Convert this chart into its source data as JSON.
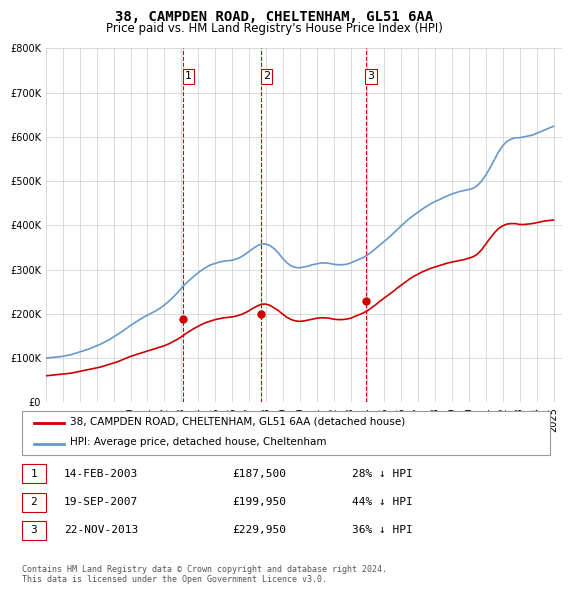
{
  "title": "38, CAMPDEN ROAD, CHELTENHAM, GL51 6AA",
  "subtitle": "Price paid vs. HM Land Registry's House Price Index (HPI)",
  "footnote": "Contains HM Land Registry data © Crown copyright and database right 2024.\nThis data is licensed under the Open Government Licence v3.0.",
  "legend_label_red": "38, CAMPDEN ROAD, CHELTENHAM, GL51 6AA (detached house)",
  "legend_label_blue": "HPI: Average price, detached house, Cheltenham",
  "transactions": [
    {
      "num": 1,
      "date": "14-FEB-2003",
      "price": "£187,500",
      "hpi_diff": "28% ↓ HPI",
      "year": 2003.12
    },
    {
      "num": 2,
      "date": "19-SEP-2007",
      "price": "£199,950",
      "hpi_diff": "44% ↓ HPI",
      "year": 2007.72
    },
    {
      "num": 3,
      "date": "22-NOV-2013",
      "price": "£229,950",
      "hpi_diff": "36% ↓ HPI",
      "year": 2013.9
    }
  ],
  "red_color": "#cc0000",
  "blue_color": "#6699cc",
  "dashed_line_color": "#cc0000",
  "marker_color": "#cc0000",
  "background_color": "#ffffff",
  "grid_color": "#cccccc",
  "ylim": [
    0,
    800000
  ],
  "xlim_start": 1995.0,
  "xlim_end": 2025.5,
  "hpi_x": [
    1995.0,
    1995.25,
    1995.5,
    1995.75,
    1996.0,
    1996.25,
    1996.5,
    1996.75,
    1997.0,
    1997.25,
    1997.5,
    1997.75,
    1998.0,
    1998.25,
    1998.5,
    1998.75,
    1999.0,
    1999.25,
    1999.5,
    1999.75,
    2000.0,
    2000.25,
    2000.5,
    2000.75,
    2001.0,
    2001.25,
    2001.5,
    2001.75,
    2002.0,
    2002.25,
    2002.5,
    2002.75,
    2003.0,
    2003.25,
    2003.5,
    2003.75,
    2004.0,
    2004.25,
    2004.5,
    2004.75,
    2005.0,
    2005.25,
    2005.5,
    2005.75,
    2006.0,
    2006.25,
    2006.5,
    2006.75,
    2007.0,
    2007.25,
    2007.5,
    2007.75,
    2008.0,
    2008.25,
    2008.5,
    2008.75,
    2009.0,
    2009.25,
    2009.5,
    2009.75,
    2010.0,
    2010.25,
    2010.5,
    2010.75,
    2011.0,
    2011.25,
    2011.5,
    2011.75,
    2012.0,
    2012.25,
    2012.5,
    2012.75,
    2013.0,
    2013.25,
    2013.5,
    2013.75,
    2014.0,
    2014.25,
    2014.5,
    2014.75,
    2015.0,
    2015.25,
    2015.5,
    2015.75,
    2016.0,
    2016.25,
    2016.5,
    2016.75,
    2017.0,
    2017.25,
    2017.5,
    2017.75,
    2018.0,
    2018.25,
    2018.5,
    2018.75,
    2019.0,
    2019.25,
    2019.5,
    2019.75,
    2020.0,
    2020.25,
    2020.5,
    2020.75,
    2021.0,
    2021.25,
    2021.5,
    2021.75,
    2022.0,
    2022.25,
    2022.5,
    2022.75,
    2023.0,
    2023.25,
    2023.5,
    2023.75,
    2024.0,
    2024.25,
    2024.5,
    2024.75,
    2025.0
  ],
  "hpi_y": [
    100000,
    101000,
    102000,
    103000,
    104000,
    106000,
    108000,
    111000,
    114000,
    117000,
    120000,
    124000,
    128000,
    132000,
    137000,
    142000,
    148000,
    154000,
    160000,
    167000,
    174000,
    180000,
    186000,
    192000,
    197000,
    202000,
    207000,
    213000,
    220000,
    228000,
    237000,
    247000,
    258000,
    268000,
    277000,
    285000,
    293000,
    300000,
    306000,
    311000,
    314000,
    317000,
    319000,
    320000,
    321000,
    324000,
    328000,
    334000,
    341000,
    348000,
    354000,
    358000,
    358000,
    354000,
    347000,
    337000,
    325000,
    315000,
    308000,
    305000,
    304000,
    306000,
    308000,
    311000,
    313000,
    315000,
    315000,
    314000,
    312000,
    311000,
    311000,
    312000,
    315000,
    319000,
    323000,
    327000,
    333000,
    340000,
    348000,
    356000,
    364000,
    372000,
    381000,
    390000,
    399000,
    408000,
    416000,
    423000,
    430000,
    437000,
    443000,
    449000,
    454000,
    458000,
    463000,
    467000,
    471000,
    474000,
    477000,
    479000,
    481000,
    484000,
    490000,
    500000,
    514000,
    530000,
    548000,
    566000,
    580000,
    590000,
    595000,
    598000,
    598000,
    600000,
    602000,
    604000,
    608000,
    612000,
    616000,
    620000,
    624000
  ],
  "red_x": [
    1995.0,
    1995.25,
    1995.5,
    1995.75,
    1996.0,
    1996.25,
    1996.5,
    1996.75,
    1997.0,
    1997.25,
    1997.5,
    1997.75,
    1998.0,
    1998.25,
    1998.5,
    1998.75,
    1999.0,
    1999.25,
    1999.5,
    1999.75,
    2000.0,
    2000.25,
    2000.5,
    2000.75,
    2001.0,
    2001.25,
    2001.5,
    2001.75,
    2002.0,
    2002.25,
    2002.5,
    2002.75,
    2003.0,
    2003.25,
    2003.5,
    2003.75,
    2004.0,
    2004.25,
    2004.5,
    2004.75,
    2005.0,
    2005.25,
    2005.5,
    2005.75,
    2006.0,
    2006.25,
    2006.5,
    2006.75,
    2007.0,
    2007.25,
    2007.5,
    2007.75,
    2008.0,
    2008.25,
    2008.5,
    2008.75,
    2009.0,
    2009.25,
    2009.5,
    2009.75,
    2010.0,
    2010.25,
    2010.5,
    2010.75,
    2011.0,
    2011.25,
    2011.5,
    2011.75,
    2012.0,
    2012.25,
    2012.5,
    2012.75,
    2013.0,
    2013.25,
    2013.5,
    2013.75,
    2014.0,
    2014.25,
    2014.5,
    2014.75,
    2015.0,
    2015.25,
    2015.5,
    2015.75,
    2016.0,
    2016.25,
    2016.5,
    2016.75,
    2017.0,
    2017.25,
    2017.5,
    2017.75,
    2018.0,
    2018.25,
    2018.5,
    2018.75,
    2019.0,
    2019.25,
    2019.5,
    2019.75,
    2020.0,
    2020.25,
    2020.5,
    2020.75,
    2021.0,
    2021.25,
    2021.5,
    2021.75,
    2022.0,
    2022.25,
    2022.5,
    2022.75,
    2023.0,
    2023.25,
    2023.5,
    2023.75,
    2024.0,
    2024.25,
    2024.5,
    2024.75,
    2025.0
  ],
  "red_y": [
    60000,
    61000,
    62000,
    63000,
    64000,
    65000,
    66000,
    68000,
    70000,
    72000,
    74000,
    76000,
    78000,
    80000,
    83000,
    86000,
    89000,
    92000,
    96000,
    100000,
    104000,
    107000,
    110000,
    113000,
    116000,
    119000,
    122000,
    125000,
    128000,
    132000,
    137000,
    142000,
    148000,
    155000,
    161000,
    167000,
    172000,
    177000,
    181000,
    184000,
    187000,
    189000,
    191000,
    192000,
    193000,
    195000,
    198000,
    202000,
    207000,
    213000,
    218000,
    222000,
    222000,
    219000,
    213000,
    207000,
    199000,
    192000,
    187000,
    184000,
    183000,
    184000,
    186000,
    188000,
    190000,
    191000,
    191000,
    190000,
    188000,
    187000,
    187000,
    188000,
    190000,
    194000,
    198000,
    202000,
    207000,
    214000,
    221000,
    229000,
    236000,
    243000,
    250000,
    258000,
    265000,
    272000,
    279000,
    285000,
    290000,
    295000,
    299000,
    303000,
    306000,
    309000,
    312000,
    315000,
    317000,
    319000,
    321000,
    323000,
    326000,
    329000,
    335000,
    345000,
    358000,
    371000,
    383000,
    393000,
    399000,
    403000,
    404000,
    404000,
    402000,
    402000,
    403000,
    404000,
    406000,
    408000,
    410000,
    411000,
    412000
  ]
}
